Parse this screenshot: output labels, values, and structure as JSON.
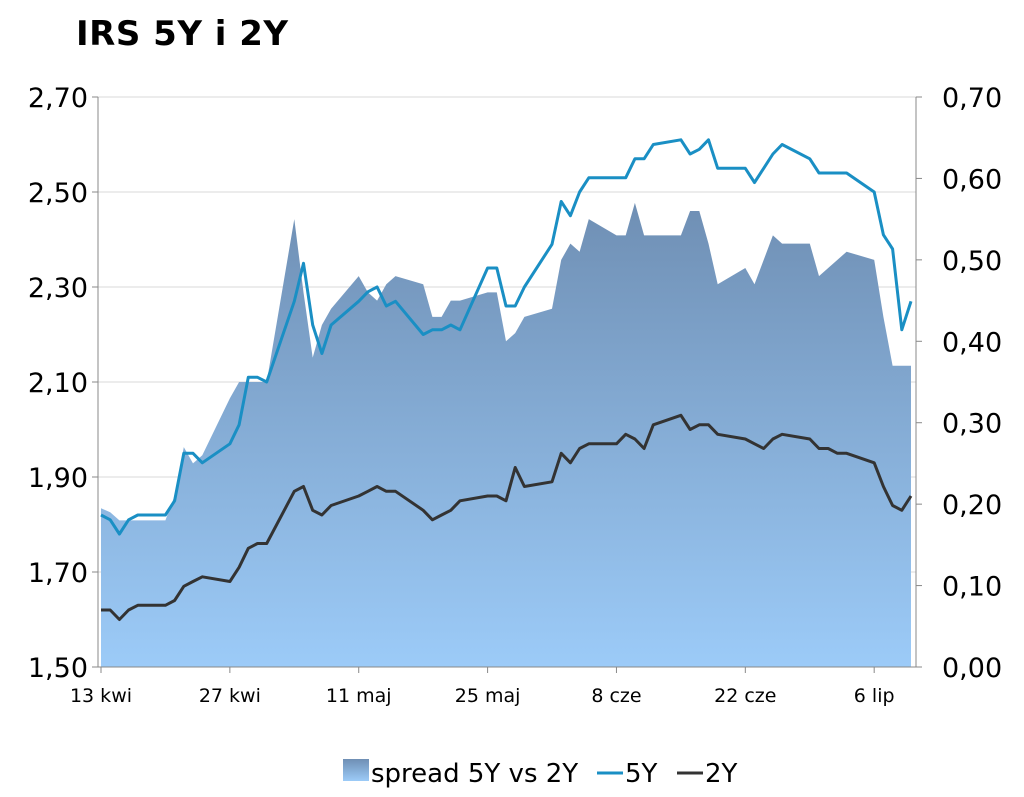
{
  "chart_data": {
    "type": "line",
    "title": "IRS 5Y i 2Y",
    "x_tick_labels": [
      "13 kwi",
      "27 kwi",
      "11 maj",
      "25 maj",
      "8 cze",
      "22 cze",
      "6 lip"
    ],
    "y_left_ticks": [
      "1,50",
      "1,70",
      "1,90",
      "2,10",
      "2,30",
      "2,50",
      "2,70"
    ],
    "y_right_ticks": [
      "0,00",
      "0,10",
      "0,20",
      "0,30",
      "0,40",
      "0,50",
      "0,60",
      "0,70"
    ],
    "ylim_left": [
      1.5,
      2.7
    ],
    "ylim_right": [
      0,
      0.7
    ],
    "grid": "horizontal",
    "legend_position": "bottom",
    "x_day_offsets": [
      0,
      1,
      2,
      3,
      4,
      7,
      8,
      9,
      10,
      11,
      14,
      15,
      16,
      17,
      18,
      21,
      22,
      23,
      24,
      25,
      28,
      29,
      30,
      31,
      32,
      35,
      36,
      37,
      38,
      39,
      42,
      43,
      44,
      45,
      46,
      49,
      50,
      51,
      52,
      53,
      56,
      57,
      58,
      59,
      60,
      63,
      64,
      65,
      66,
      67,
      70,
      71,
      72,
      73,
      74,
      77,
      78,
      79,
      80,
      81,
      84,
      85,
      86,
      87,
      88
    ],
    "series": [
      {
        "name": "spread 5Y vs 2Y",
        "type": "area",
        "axis": "right",
        "color_top": "#6f8fb4",
        "color_bottom": "#9ccbf8",
        "values": [
          0.195,
          0.19,
          0.18,
          0.18,
          0.18,
          0.18,
          0.21,
          0.27,
          0.25,
          0.26,
          0.33,
          0.35,
          0.35,
          0.35,
          0.35,
          0.55,
          0.46,
          0.38,
          0.42,
          0.44,
          0.48,
          0.46,
          0.45,
          0.47,
          0.48,
          0.47,
          0.43,
          0.43,
          0.45,
          0.45,
          0.46,
          0.46,
          0.4,
          0.41,
          0.43,
          0.44,
          0.5,
          0.52,
          0.51,
          0.55,
          0.53,
          0.53,
          0.57,
          0.53,
          0.53,
          0.53,
          0.56,
          0.56,
          0.52,
          0.47,
          0.49,
          0.47,
          0.5,
          0.53,
          0.52,
          0.52,
          0.48,
          0.49,
          0.5,
          0.51,
          0.5,
          0.43,
          0.37,
          0.37,
          0.37
        ]
      },
      {
        "name": "5Y",
        "type": "line",
        "axis": "left",
        "color": "#1a8fc4",
        "values": [
          1.82,
          1.81,
          1.78,
          1.81,
          1.82,
          1.82,
          1.85,
          1.95,
          1.95,
          1.93,
          1.97,
          2.01,
          2.11,
          2.11,
          2.1,
          2.27,
          2.35,
          2.22,
          2.16,
          2.22,
          2.27,
          2.29,
          2.3,
          2.26,
          2.27,
          2.2,
          2.21,
          2.21,
          2.22,
          2.21,
          2.34,
          2.34,
          2.26,
          2.26,
          2.3,
          2.39,
          2.48,
          2.45,
          2.5,
          2.53,
          2.53,
          2.53,
          2.57,
          2.57,
          2.6,
          2.61,
          2.58,
          2.59,
          2.61,
          2.55,
          2.55,
          2.52,
          2.55,
          2.58,
          2.6,
          2.57,
          2.54,
          2.54,
          2.54,
          2.54,
          2.5,
          2.41,
          2.38,
          2.21,
          2.27
        ]
      },
      {
        "name": "2Y",
        "type": "line",
        "axis": "left",
        "color": "#333333",
        "values": [
          1.62,
          1.62,
          1.6,
          1.62,
          1.63,
          1.63,
          1.64,
          1.67,
          1.68,
          1.69,
          1.68,
          1.71,
          1.75,
          1.76,
          1.76,
          1.87,
          1.88,
          1.83,
          1.82,
          1.84,
          1.86,
          1.87,
          1.88,
          1.87,
          1.87,
          1.83,
          1.81,
          1.82,
          1.83,
          1.85,
          1.86,
          1.86,
          1.85,
          1.92,
          1.88,
          1.89,
          1.95,
          1.93,
          1.96,
          1.97,
          1.97,
          1.99,
          1.98,
          1.96,
          2.01,
          2.03,
          2.0,
          2.01,
          2.01,
          1.99,
          1.98,
          1.97,
          1.96,
          1.98,
          1.99,
          1.98,
          1.96,
          1.96,
          1.95,
          1.95,
          1.93,
          1.88,
          1.84,
          1.83,
          1.86
        ]
      }
    ]
  }
}
